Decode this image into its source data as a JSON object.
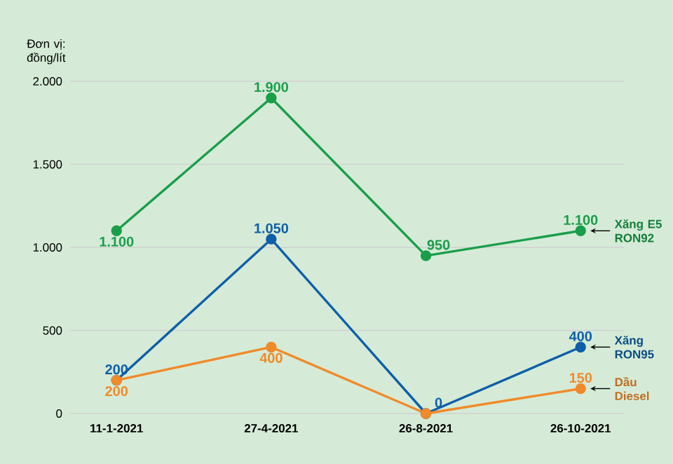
{
  "chart_data": {
    "type": "line",
    "ylabel": "Đơn vị: đồng/lít",
    "categories": [
      "11-1-2021",
      "27-4-2021",
      "26-8-2021",
      "26-10-2021"
    ],
    "ylim": [
      0,
      2000
    ],
    "yticks": [
      0,
      500,
      {
        "value": 1000,
        "label": "1.000"
      },
      {
        "value": 1500,
        "label": "1.500"
      },
      {
        "value": 2000,
        "label": "2.000"
      }
    ],
    "grid": "y",
    "marker": "circle",
    "series": [
      {
        "name": "Xăng E5 RON92",
        "color": "#1a9e4a",
        "values": [
          1100,
          1900,
          950,
          1100
        ],
        "value_labels": [
          "1.100",
          "1.900",
          "950",
          "1.100"
        ]
      },
      {
        "name": "Xăng RON95",
        "color": "#0f5fa8",
        "values": [
          200,
          1050,
          0,
          400
        ],
        "value_labels": [
          "200",
          "1.050",
          "0",
          "400"
        ]
      },
      {
        "name": "Dầu Diesel",
        "color": "#f08a2a",
        "values": [
          200,
          400,
          0,
          150
        ],
        "value_labels": [
          "200",
          "400",
          null,
          "150"
        ]
      }
    ]
  }
}
